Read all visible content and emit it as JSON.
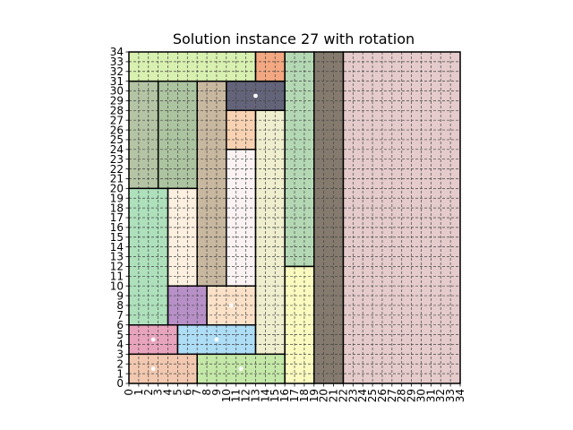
{
  "chart_data": {
    "type": "rectangle-packing",
    "title": "Solution instance 27 with rotation",
    "xlabel": "",
    "ylabel": "",
    "xlim": [
      0,
      34
    ],
    "ylim": [
      0,
      34
    ],
    "grid": true,
    "grid_style": "dashed",
    "x_ticks": [
      0,
      1,
      2,
      3,
      4,
      5,
      6,
      7,
      8,
      9,
      10,
      11,
      12,
      13,
      14,
      15,
      16,
      17,
      18,
      19,
      20,
      21,
      22,
      23,
      24,
      25,
      26,
      27,
      28,
      29,
      30,
      31,
      32,
      33,
      34
    ],
    "y_ticks": [
      0,
      1,
      2,
      3,
      4,
      5,
      6,
      7,
      8,
      9,
      10,
      11,
      12,
      13,
      14,
      15,
      16,
      17,
      18,
      19,
      20,
      21,
      22,
      23,
      24,
      25,
      26,
      27,
      28,
      29,
      30,
      31,
      32,
      33,
      34
    ],
    "rectangles": [
      {
        "x": 0,
        "y": 0,
        "w": 7,
        "h": 3,
        "color": "#f2c8b0"
      },
      {
        "x": 7,
        "y": 0,
        "w": 9,
        "h": 3,
        "color": "#c4e8a8"
      },
      {
        "x": 0,
        "y": 3,
        "w": 5,
        "h": 3,
        "color": "#e8a4bc"
      },
      {
        "x": 5,
        "y": 3,
        "w": 8,
        "h": 3,
        "color": "#aeddf6"
      },
      {
        "x": 4,
        "y": 6,
        "w": 4,
        "h": 4,
        "color": "#b790c8"
      },
      {
        "x": 8,
        "y": 6,
        "w": 5,
        "h": 4,
        "color": "#fbe1c8"
      },
      {
        "x": 0,
        "y": 6,
        "w": 4,
        "h": 14,
        "color": "#aee0bc"
      },
      {
        "x": 4,
        "y": 10,
        "w": 3,
        "h": 10,
        "color": "#fdf0e0"
      },
      {
        "x": 7,
        "y": 10,
        "w": 3,
        "h": 21,
        "color": "#c8b8a0"
      },
      {
        "x": 10,
        "y": 10,
        "w": 3,
        "h": 14,
        "color": "#fbf3f3"
      },
      {
        "x": 10,
        "y": 24,
        "w": 3,
        "h": 4,
        "color": "#f8d2b2"
      },
      {
        "x": 13,
        "y": 3,
        "w": 3,
        "h": 25,
        "color": "#efefcf"
      },
      {
        "x": 0,
        "y": 20,
        "w": 3,
        "h": 11,
        "color": "#b4c4a4"
      },
      {
        "x": 3,
        "y": 20,
        "w": 4,
        "h": 11,
        "color": "#acc4a0"
      },
      {
        "x": 10,
        "y": 28,
        "w": 6,
        "h": 3,
        "color": "#636379"
      },
      {
        "x": 0,
        "y": 31,
        "w": 13,
        "h": 3,
        "color": "#d8f0b0"
      },
      {
        "x": 13,
        "y": 31,
        "w": 3,
        "h": 3,
        "color": "#f3a882"
      },
      {
        "x": 16,
        "y": 0,
        "w": 3,
        "h": 12,
        "color": "#fbfbc0"
      },
      {
        "x": 16,
        "y": 12,
        "w": 3,
        "h": 22,
        "color": "#b4d8b4"
      },
      {
        "x": 19,
        "y": 0,
        "w": 3,
        "h": 34,
        "color": "#857a6e"
      },
      {
        "x": 22,
        "y": 0,
        "w": 12,
        "h": 34,
        "color": "#e5cbcb"
      }
    ],
    "markers": [
      {
        "x": 2.5,
        "y": 1.5
      },
      {
        "x": 11.5,
        "y": 1.5
      },
      {
        "x": 2.5,
        "y": 4.5
      },
      {
        "x": 9.0,
        "y": 4.5
      },
      {
        "x": 10.5,
        "y": 8.0
      },
      {
        "x": 13.0,
        "y": 29.5
      }
    ],
    "colors": {
      "grid": "#444444",
      "outline": "#000000",
      "marker": "#ffffff"
    }
  }
}
